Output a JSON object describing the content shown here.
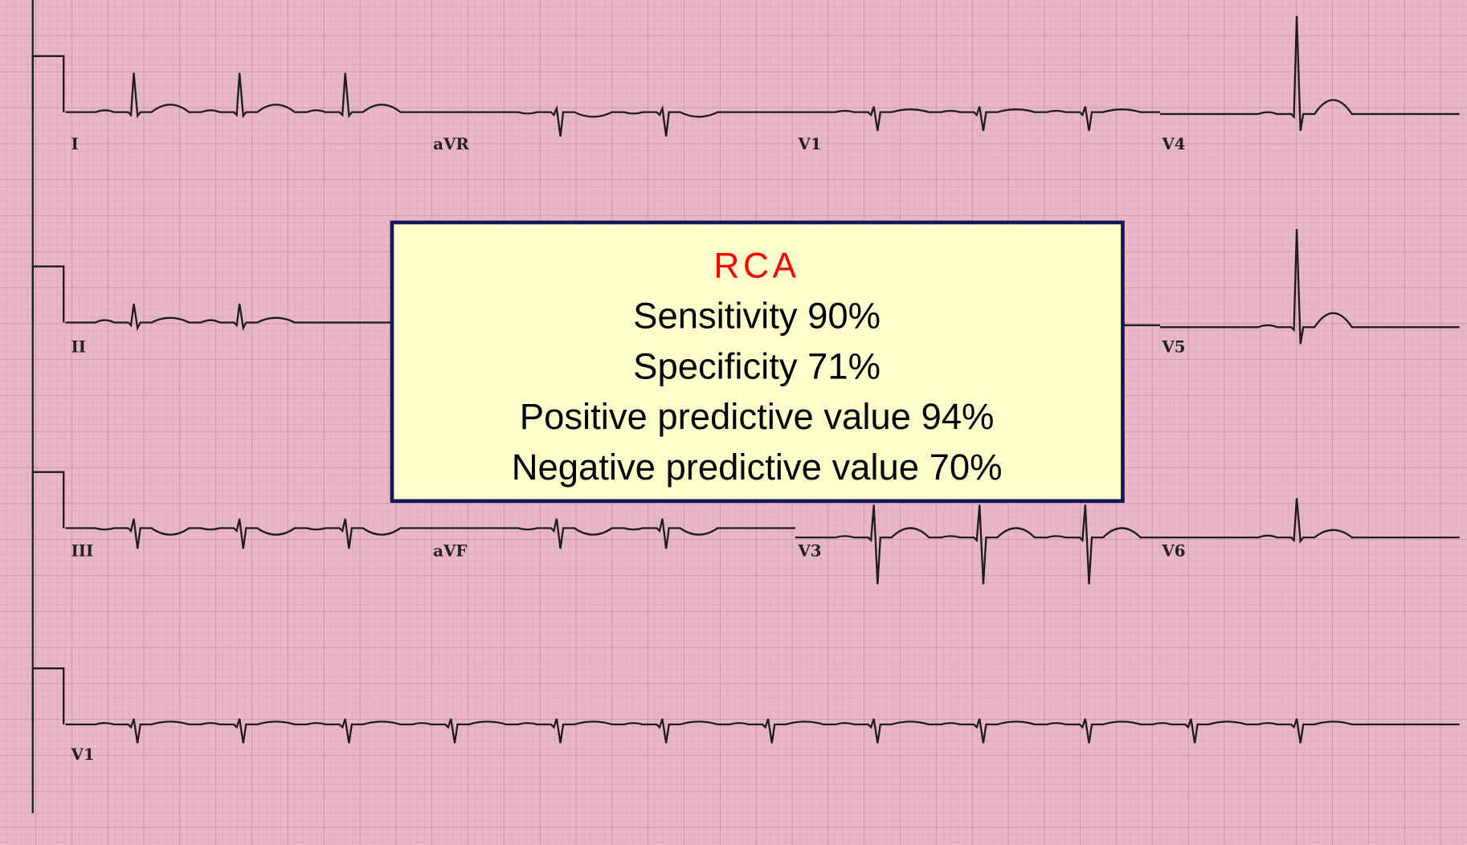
{
  "leads": [
    {
      "label": "I"
    },
    {
      "label": "aVR"
    },
    {
      "label": "V1"
    },
    {
      "label": "V4"
    },
    {
      "label": "II"
    },
    {
      "label": "V5"
    },
    {
      "label": "III"
    },
    {
      "label": "aVF"
    },
    {
      "label": "V3"
    },
    {
      "label": "V6"
    },
    {
      "label": "V1"
    }
  ],
  "box": {
    "title": "RCA",
    "lines": [
      "Sensitivity 90%",
      "Specificity 71%",
      "Positive predictive value 94%",
      "Negative predictive value 70%"
    ]
  }
}
